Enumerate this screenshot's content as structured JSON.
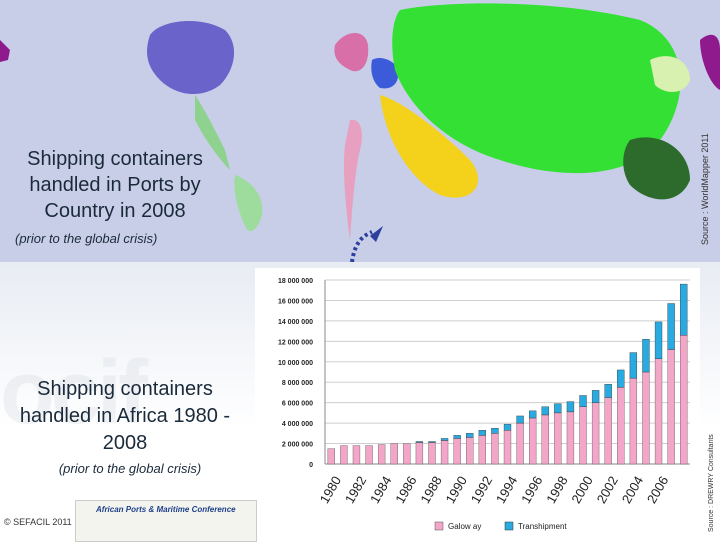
{
  "top_title": "Shipping containers handled in Ports by Country in 2008",
  "top_subtitle": "(prior to the global crisis)",
  "bottom_title": "Shipping containers handled in Africa 1980 - 2008",
  "bottom_subtitle": "(prior to the global crisis)",
  "source_top": "Source : WorldMapper 2011",
  "source_bottom": "Source : DREWRY Consultants",
  "copyright": "© SEFACIL 2011",
  "conference_logo_text": "African Ports & Maritime Conference",
  "colors": {
    "gateway": "#f4a6c8",
    "transhipment": "#29abe2",
    "map_sea": "#c8cee8",
    "arrow": "#2b3f9c"
  },
  "chart_data": {
    "type": "bar",
    "stacked": true,
    "categories": [
      "1980",
      "1981",
      "1982",
      "1983",
      "1984",
      "1985",
      "1986",
      "1987",
      "1988",
      "1989",
      "1990",
      "1991",
      "1992",
      "1993",
      "1994",
      "1995",
      "1996",
      "1997",
      "1998",
      "1999",
      "2000",
      "2001",
      "2002",
      "2003",
      "2004",
      "2005",
      "2006",
      "2007",
      "2008"
    ],
    "x_tick_labels": [
      "1980",
      "1982",
      "1984",
      "1986",
      "1988",
      "1990",
      "1992",
      "1994",
      "1996",
      "1998",
      "2000",
      "2002",
      "2004",
      "2006"
    ],
    "series": [
      {
        "name": "Galow ay",
        "values": [
          1500000,
          1800000,
          1800000,
          1800000,
          1900000,
          2000000,
          2000000,
          2100000,
          2100000,
          2300000,
          2500000,
          2600000,
          2800000,
          3000000,
          3300000,
          4000000,
          4500000,
          4800000,
          5000000,
          5100000,
          5600000,
          6000000,
          6500000,
          7500000,
          8400000,
          9000000,
          10300000,
          11200000,
          12600000
        ]
      },
      {
        "name": "Transhipment",
        "values": [
          0,
          0,
          0,
          0,
          0,
          0,
          0,
          100000,
          100000,
          200000,
          300000,
          400000,
          500000,
          500000,
          600000,
          700000,
          700000,
          800000,
          900000,
          1000000,
          1100000,
          1200000,
          1300000,
          1700000,
          2500000,
          3200000,
          3600000,
          4500000,
          5000000
        ]
      }
    ],
    "y_tick_labels": [
      "0",
      "2 000 000",
      "4 000 000",
      "6 000 000",
      "8 000 000",
      "10 000 000",
      "12 000 000",
      "14 000 000",
      "16 000 000",
      "18 000 000"
    ],
    "ylim": [
      0,
      18000000
    ],
    "y_step": 2000000,
    "grid": true,
    "legend": "bottom"
  }
}
